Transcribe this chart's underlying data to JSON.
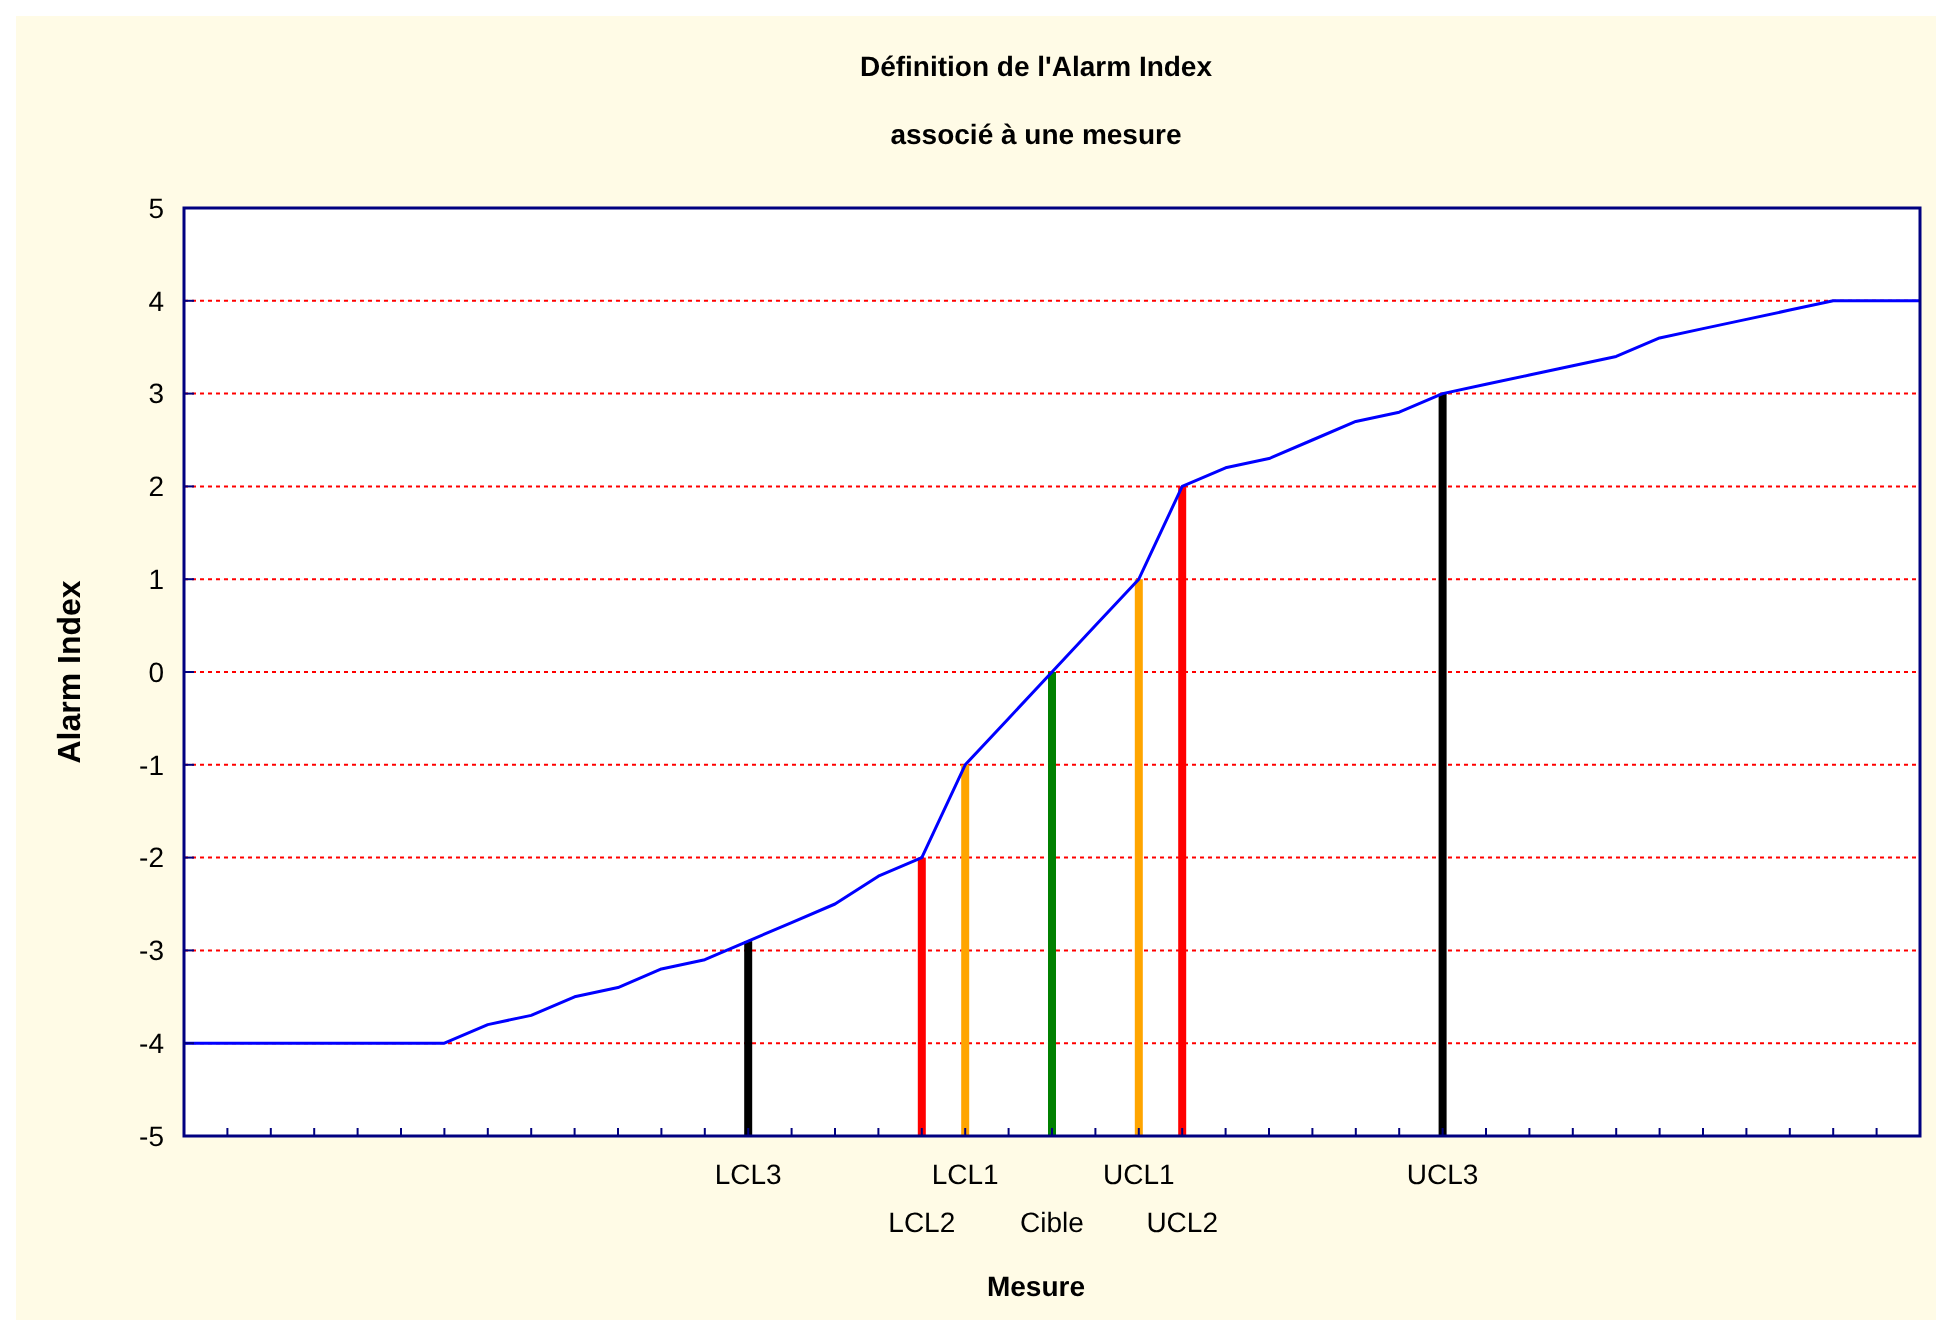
{
  "chart_data": {
    "type": "line",
    "title": "Définition de l'Alarm Index",
    "subtitle": "associé à une mesure",
    "xlabel": "Mesure",
    "ylabel": "Alarm Index",
    "categories": [
      null,
      null,
      null,
      null,
      null,
      null,
      null,
      null,
      null,
      null,
      null,
      null,
      null,
      "LCL3",
      null,
      null,
      null,
      "LCL2",
      "LCL1",
      null,
      "Cible",
      null,
      "UCL1",
      "UCL2",
      null,
      null,
      null,
      null,
      null,
      "UCL3",
      null,
      null,
      null,
      null,
      null,
      null,
      null,
      null,
      null,
      null,
      null
    ],
    "ylim": [
      -5,
      5
    ],
    "yticks": [
      -5,
      -4,
      -3,
      -2,
      -1,
      0,
      1,
      2,
      3,
      4,
      5
    ],
    "grid": "y",
    "marker": "none",
    "line_style": "solid",
    "series": [
      {
        "color": "#0000ff",
        "values": [
          -4,
          -4,
          -4,
          -4,
          -4,
          -4,
          -4,
          -3.8,
          -3.7,
          -3.5,
          -3.4,
          -3.2,
          -3.1,
          -2.9,
          -2.7,
          -2.5,
          -2.2,
          -2,
          -1,
          -0.5,
          0,
          0.5,
          1,
          2,
          2.2,
          2.3,
          2.5,
          2.7,
          2.8,
          3,
          3.1,
          3.2,
          3.3,
          3.4,
          3.6,
          3.7,
          3.8,
          3.9,
          4,
          4,
          4
        ]
      },
      {
        "type": "bar",
        "values": [
          null,
          null,
          null,
          null,
          null,
          null,
          null,
          null,
          null,
          null,
          null,
          null,
          null,
          2.1,
          null,
          null,
          null,
          3,
          4,
          null,
          5,
          null,
          6,
          7,
          null,
          null,
          null,
          null,
          null,
          8,
          null,
          null,
          null,
          null,
          null,
          null,
          null,
          null,
          null,
          null,
          null
        ],
        "base": [
          null,
          null,
          null,
          null,
          null,
          null,
          null,
          null,
          null,
          null,
          null,
          null,
          null,
          -5,
          null,
          null,
          null,
          -5,
          -5,
          null,
          -5,
          null,
          -5,
          -5,
          null,
          null,
          null,
          null,
          null,
          -5,
          null,
          null,
          null,
          null,
          null,
          null,
          null,
          null,
          null,
          null,
          null
        ],
        "colors": [
          null,
          null,
          null,
          null,
          null,
          null,
          null,
          null,
          null,
          null,
          null,
          null,
          null,
          "#000000",
          null,
          null,
          null,
          "#ff0000",
          "#ffa500",
          null,
          "#008000",
          null,
          "#ffa500",
          "#ff0000",
          null,
          null,
          null,
          null,
          null,
          "#000000",
          null,
          null,
          null,
          null,
          null,
          null,
          null,
          null,
          null,
          null,
          null
        ]
      }
    ]
  }
}
